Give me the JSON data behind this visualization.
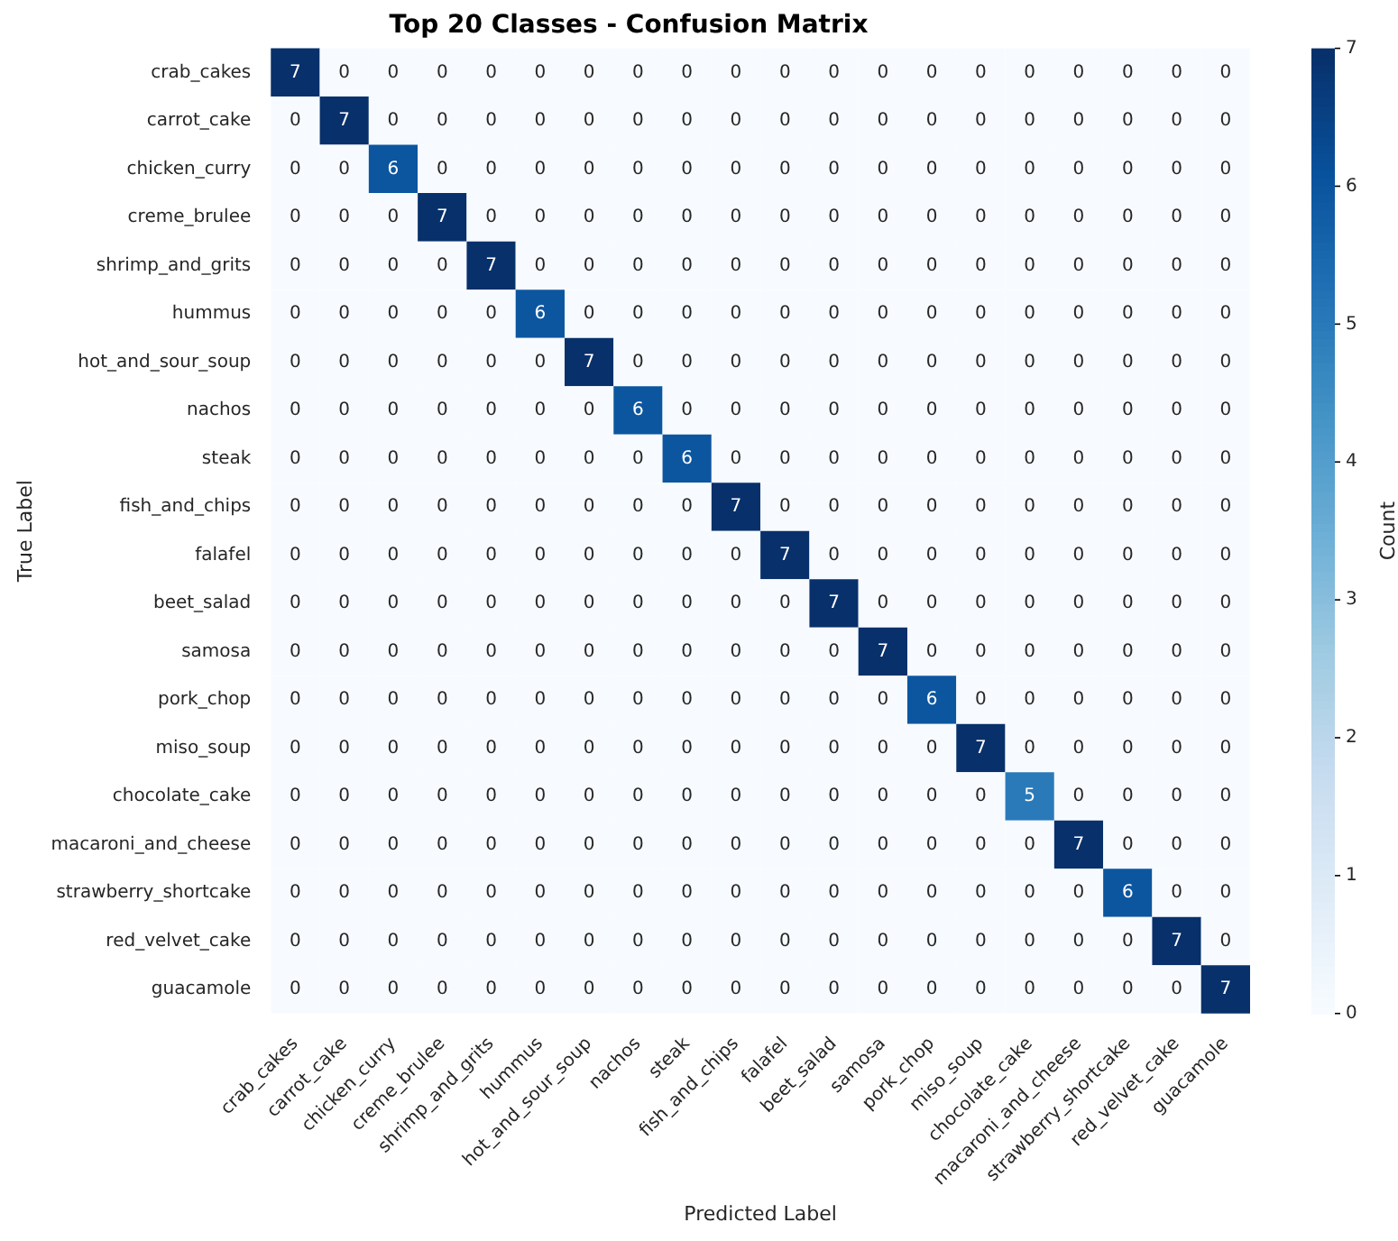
{
  "chart_data": {
    "type": "heatmap",
    "title": "Top 20 Classes - Confusion Matrix",
    "xlabel": "Predicted Label",
    "ylabel": "True Label",
    "clabel": "Count",
    "categories": [
      "crab_cakes",
      "carrot_cake",
      "chicken_curry",
      "creme_brulee",
      "shrimp_and_grits",
      "hummus",
      "hot_and_sour_soup",
      "nachos",
      "steak",
      "fish_and_chips",
      "falafel",
      "beet_salad",
      "samosa",
      "pork_chop",
      "miso_soup",
      "chocolate_cake",
      "macaroni_and_cheese",
      "strawberry_shortcake",
      "red_velvet_cake",
      "guacamole"
    ],
    "y_categories": [
      "crab_cakes",
      "carrot_cake",
      "chicken_curry",
      "creme_brulee",
      "shrimp_and_grits",
      "hummus",
      "hot_and_sour_soup",
      "nachos",
      "steak",
      "fish_and_chips",
      "falafel",
      "beet_salad",
      "samosa",
      "pork_chop",
      "miso_soup",
      "chocolate_cake",
      "macaroni_and_cheese",
      "strawberry_shortcake",
      "red_velvet_cake",
      "guacamole"
    ],
    "cells": [
      [
        7,
        0,
        0,
        0,
        0,
        0,
        0,
        0,
        0,
        0,
        0,
        0,
        0,
        0,
        0,
        0,
        0,
        0,
        0,
        0
      ],
      [
        0,
        7,
        0,
        0,
        0,
        0,
        0,
        0,
        0,
        0,
        0,
        0,
        0,
        0,
        0,
        0,
        0,
        0,
        0,
        0
      ],
      [
        0,
        0,
        6,
        0,
        0,
        0,
        0,
        0,
        0,
        0,
        0,
        0,
        0,
        0,
        0,
        0,
        0,
        0,
        0,
        0
      ],
      [
        0,
        0,
        0,
        7,
        0,
        0,
        0,
        0,
        0,
        0,
        0,
        0,
        0,
        0,
        0,
        0,
        0,
        0,
        0,
        0
      ],
      [
        0,
        0,
        0,
        0,
        7,
        0,
        0,
        0,
        0,
        0,
        0,
        0,
        0,
        0,
        0,
        0,
        0,
        0,
        0,
        0
      ],
      [
        0,
        0,
        0,
        0,
        0,
        6,
        0,
        0,
        0,
        0,
        0,
        0,
        0,
        0,
        0,
        0,
        0,
        0,
        0,
        0
      ],
      [
        0,
        0,
        0,
        0,
        0,
        0,
        7,
        0,
        0,
        0,
        0,
        0,
        0,
        0,
        0,
        0,
        0,
        0,
        0,
        0
      ],
      [
        0,
        0,
        0,
        0,
        0,
        0,
        0,
        6,
        0,
        0,
        0,
        0,
        0,
        0,
        0,
        0,
        0,
        0,
        0,
        0
      ],
      [
        0,
        0,
        0,
        0,
        0,
        0,
        0,
        0,
        6,
        0,
        0,
        0,
        0,
        0,
        0,
        0,
        0,
        0,
        0,
        0
      ],
      [
        0,
        0,
        0,
        0,
        0,
        0,
        0,
        0,
        0,
        7,
        0,
        0,
        0,
        0,
        0,
        0,
        0,
        0,
        0,
        0
      ],
      [
        0,
        0,
        0,
        0,
        0,
        0,
        0,
        0,
        0,
        0,
        7,
        0,
        0,
        0,
        0,
        0,
        0,
        0,
        0,
        0
      ],
      [
        0,
        0,
        0,
        0,
        0,
        0,
        0,
        0,
        0,
        0,
        0,
        7,
        0,
        0,
        0,
        0,
        0,
        0,
        0,
        0
      ],
      [
        0,
        0,
        0,
        0,
        0,
        0,
        0,
        0,
        0,
        0,
        0,
        0,
        7,
        0,
        0,
        0,
        0,
        0,
        0,
        0
      ],
      [
        0,
        0,
        0,
        0,
        0,
        0,
        0,
        0,
        0,
        0,
        0,
        0,
        0,
        6,
        0,
        0,
        0,
        0,
        0,
        0
      ],
      [
        0,
        0,
        0,
        0,
        0,
        0,
        0,
        0,
        0,
        0,
        0,
        0,
        0,
        0,
        7,
        0,
        0,
        0,
        0,
        0
      ],
      [
        0,
        0,
        0,
        0,
        0,
        0,
        0,
        0,
        0,
        0,
        0,
        0,
        0,
        0,
        0,
        5,
        0,
        0,
        0,
        0
      ],
      [
        0,
        0,
        0,
        0,
        0,
        0,
        0,
        0,
        0,
        0,
        0,
        0,
        0,
        0,
        0,
        0,
        7,
        0,
        0,
        0
      ],
      [
        0,
        0,
        0,
        0,
        0,
        0,
        0,
        0,
        0,
        0,
        0,
        0,
        0,
        0,
        0,
        0,
        0,
        6,
        0,
        0
      ],
      [
        0,
        0,
        0,
        0,
        0,
        0,
        0,
        0,
        0,
        0,
        0,
        0,
        0,
        0,
        0,
        0,
        0,
        0,
        7,
        0
      ],
      [
        0,
        0,
        0,
        0,
        0,
        0,
        0,
        0,
        0,
        0,
        0,
        0,
        0,
        0,
        0,
        0,
        0,
        0,
        0,
        7
      ]
    ],
    "data_labels": true,
    "clim": [
      0,
      7
    ],
    "cticks": [
      0,
      1,
      2,
      3,
      4,
      5,
      6,
      7
    ]
  }
}
